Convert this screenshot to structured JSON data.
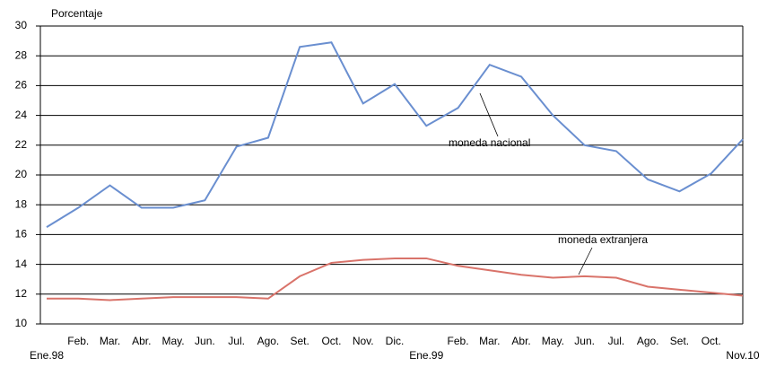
{
  "chart_data": {
    "type": "line",
    "y_label": "Porcentaje",
    "categories": [
      "Ene.98",
      "Feb.",
      "Mar.",
      "Abr.",
      "May.",
      "Jun.",
      "Jul.",
      "Ago.",
      "Set.",
      "Oct.",
      "Nov.",
      "Dic.",
      "Ene.99",
      "Feb.",
      "Mar.",
      "Abr.",
      "May.",
      "Jun.",
      "Jul.",
      "Ago.",
      "Set.",
      "Oct.",
      "Nov.10"
    ],
    "series": [
      {
        "name": "moneda nacional",
        "color": "#6a8fd0",
        "values": [
          16.5,
          17.8,
          19.3,
          17.8,
          17.8,
          18.3,
          21.9,
          22.5,
          28.6,
          28.9,
          24.8,
          26.1,
          23.3,
          24.5,
          27.4,
          26.6,
          24.0,
          22.0,
          21.6,
          19.7,
          18.9,
          20.1,
          22.4
        ]
      },
      {
        "name": "moneda extranjera",
        "color": "#d9736a",
        "values": [
          11.7,
          11.7,
          11.6,
          11.7,
          11.8,
          11.8,
          11.8,
          11.7,
          13.2,
          14.1,
          14.3,
          14.4,
          14.4,
          13.9,
          13.6,
          13.3,
          13.1,
          13.2,
          13.1,
          12.5,
          12.3,
          12.1,
          11.9
        ]
      }
    ],
    "ylim": [
      10,
      30
    ],
    "yticks": [
      10,
      12,
      14,
      16,
      18,
      20,
      22,
      24,
      26,
      28,
      30
    ],
    "grid": true
  }
}
